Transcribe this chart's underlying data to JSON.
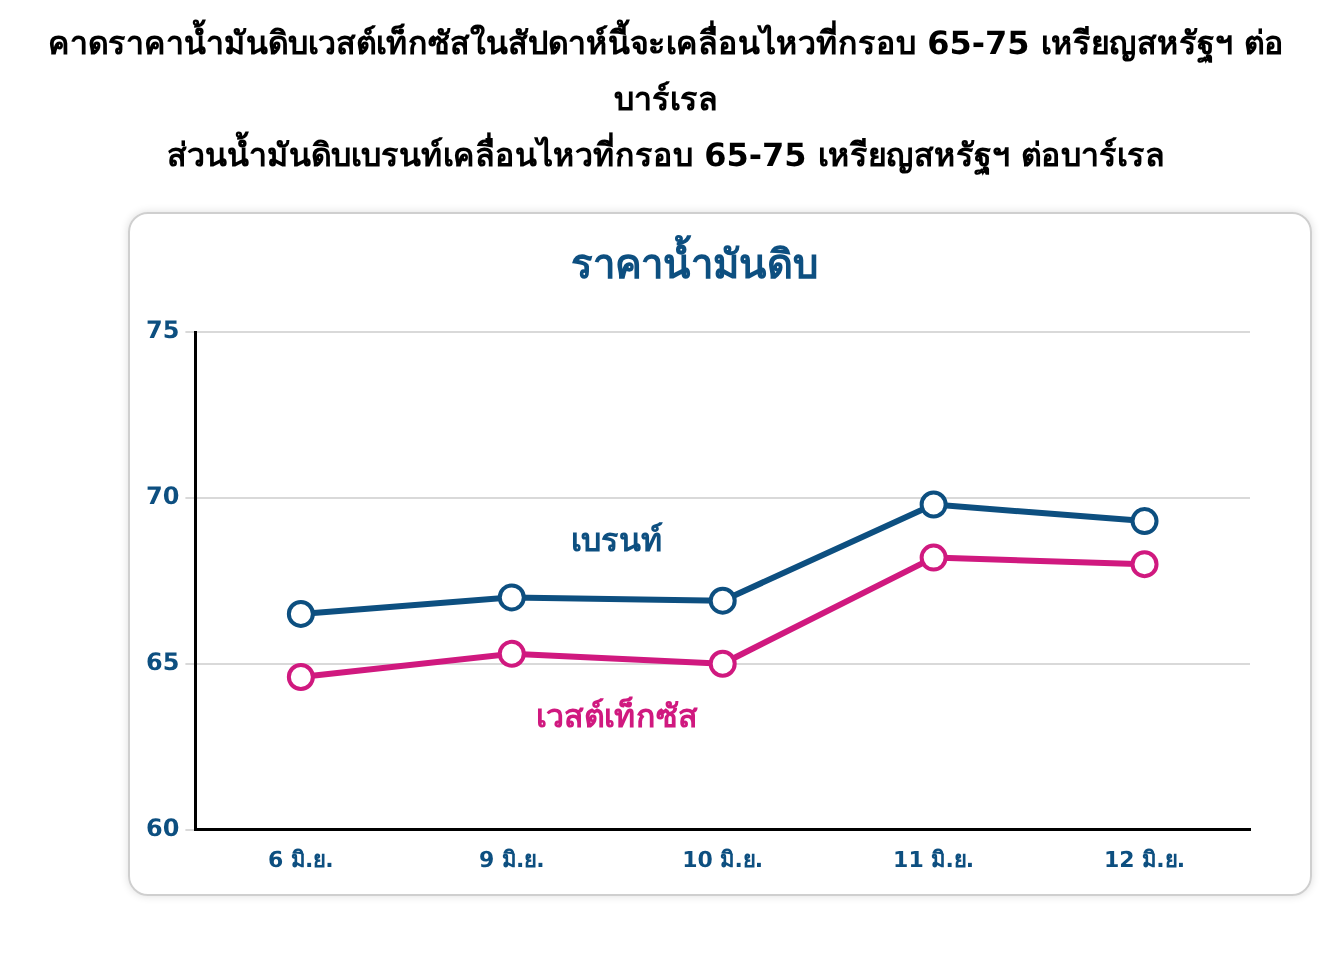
{
  "chart_data": {
    "type": "line",
    "title": "คาดราคาน้ำมันดิบเวสต์เท็กซัสในสัปดาห์นี้จะเคลื่อนไหวที่กรอบ 65-75 เหรียญสหรัฐฯ ต่อบาร์เรล\nส่วนน้ำมันดิบเบรนท์เคลื่อนไหวที่กรอบ 65-75 เหรียญสหรัฐฯ ต่อบาร์เรล",
    "subtitle": "ราคาน้ำมันดิบ",
    "categories": [
      "6 มิ.ย.",
      "9 มิ.ย.",
      "10 มิ.ย.",
      "11 มิ.ย.",
      "12 มิ.ย."
    ],
    "series": [
      {
        "name": "เบรนท์",
        "color": "#0d4f80",
        "values": [
          66.5,
          67.0,
          66.9,
          69.8,
          69.3
        ]
      },
      {
        "name": "เวสต์เท็กซัส",
        "color": "#d0197f",
        "values": [
          64.6,
          65.3,
          65.0,
          68.2,
          68.0
        ]
      }
    ],
    "ylim": [
      60,
      75
    ],
    "yticks": [
      60,
      65,
      70,
      75
    ],
    "grid": "y",
    "legend": false,
    "marker": "circle",
    "line_style": "solid"
  }
}
